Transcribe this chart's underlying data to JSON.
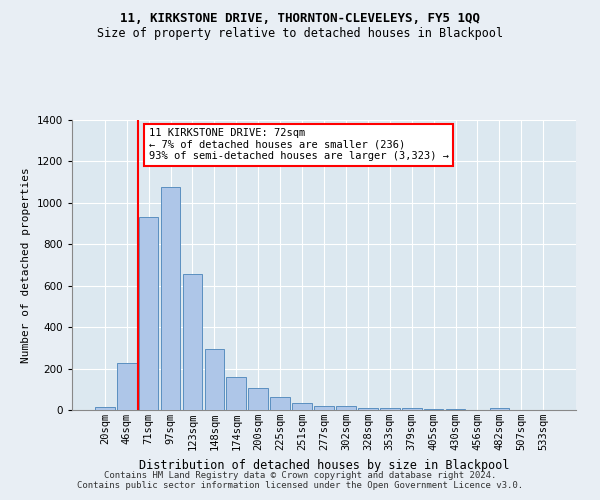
{
  "title_line1": "11, KIRKSTONE DRIVE, THORNTON-CLEVELEYS, FY5 1QQ",
  "title_line2": "Size of property relative to detached houses in Blackpool",
  "xlabel": "Distribution of detached houses by size in Blackpool",
  "ylabel": "Number of detached properties",
  "footnote": "Contains HM Land Registry data © Crown copyright and database right 2024.\nContains public sector information licensed under the Open Government Licence v3.0.",
  "bar_labels": [
    "20sqm",
    "46sqm",
    "71sqm",
    "97sqm",
    "123sqm",
    "148sqm",
    "174sqm",
    "200sqm",
    "225sqm",
    "251sqm",
    "277sqm",
    "302sqm",
    "328sqm",
    "353sqm",
    "379sqm",
    "405sqm",
    "430sqm",
    "456sqm",
    "482sqm",
    "507sqm",
    "533sqm"
  ],
  "bar_values": [
    15,
    225,
    930,
    1075,
    655,
    295,
    160,
    105,
    65,
    35,
    20,
    20,
    10,
    10,
    10,
    5,
    5,
    0,
    10,
    0,
    0
  ],
  "bar_color": "#aec6e8",
  "bar_edge_color": "#5a8fc0",
  "annotation_box_text": "11 KIRKSTONE DRIVE: 72sqm\n← 7% of detached houses are smaller (236)\n93% of semi-detached houses are larger (3,323) →",
  "vline_pos": 1.5,
  "ylim": [
    0,
    1400
  ],
  "yticks": [
    0,
    200,
    400,
    600,
    800,
    1000,
    1200,
    1400
  ],
  "bg_color": "#e8eef4",
  "plot_bg_color": "#dce8f0",
  "grid_color": "#ffffff",
  "annotation_box_facecolor": "white",
  "annotation_box_edgecolor": "red",
  "vline_color": "red",
  "title1_fontsize": 9,
  "title2_fontsize": 8.5,
  "ylabel_fontsize": 8,
  "xlabel_fontsize": 8.5,
  "tick_fontsize": 7.5,
  "ann_fontsize": 7.5,
  "footnote_fontsize": 6.5
}
